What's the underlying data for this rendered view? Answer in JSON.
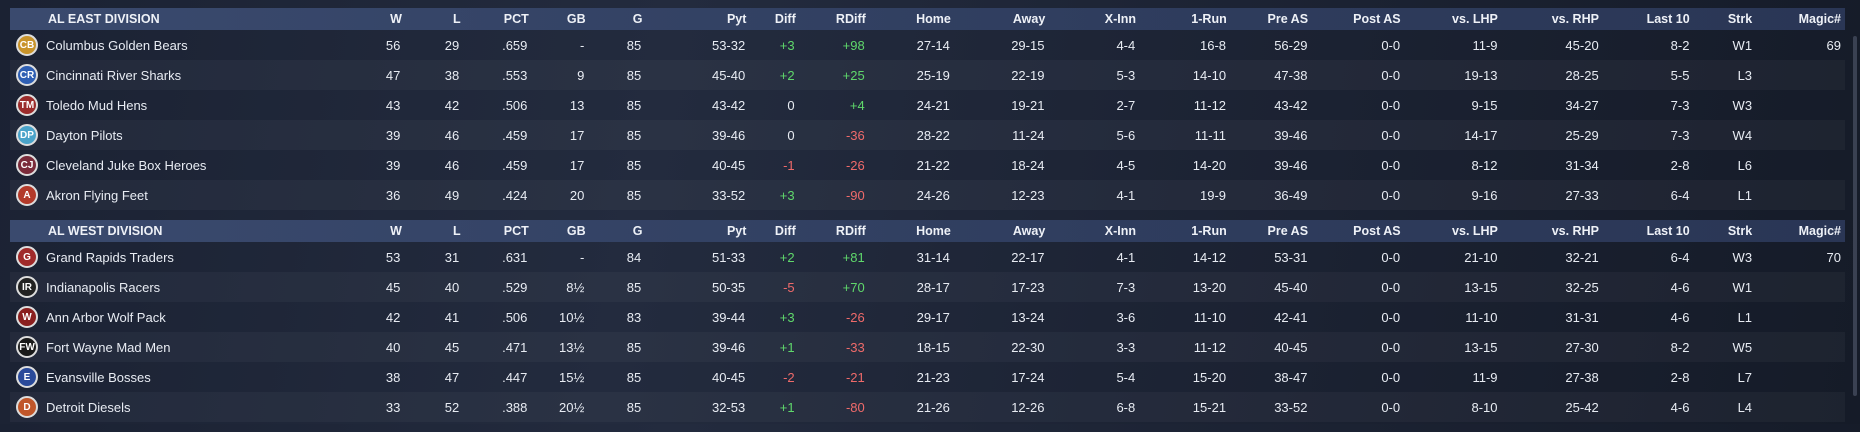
{
  "columns": {
    "w": "W",
    "l": "L",
    "pct": "PCT",
    "gb": "GB",
    "g": "G",
    "pyt": "Pyt",
    "diff": "Diff",
    "rdiff": "RDiff",
    "home": "Home",
    "away": "Away",
    "xinn": "X-Inn",
    "onerun": "1-Run",
    "preas": "Pre AS",
    "postas": "Post AS",
    "lhp": "vs. LHP",
    "rhp": "vs. RHP",
    "last10": "Last 10",
    "strk": "Strk",
    "magic": "Magic#"
  },
  "divisions": [
    {
      "name": "AL EAST DIVISION",
      "teams": [
        {
          "name": "Columbus Golden Bears",
          "logo": "CB",
          "logo_color": "#c8932a",
          "w": "56",
          "l": "29",
          "pct": ".659",
          "gb": "-",
          "g": "85",
          "pyt": "53-32",
          "diff": "+3",
          "rdiff": "+98",
          "home": "27-14",
          "away": "29-15",
          "xinn": "4-4",
          "onerun": "16-8",
          "preas": "56-29",
          "postas": "0-0",
          "lhp": "11-9",
          "rhp": "45-20",
          "last10": "8-2",
          "strk": "W1",
          "magic": "69"
        },
        {
          "name": "Cincinnati River Sharks",
          "logo": "CR",
          "logo_color": "#2f5fb3",
          "w": "47",
          "l": "38",
          "pct": ".553",
          "gb": "9",
          "g": "85",
          "pyt": "45-40",
          "diff": "+2",
          "rdiff": "+25",
          "home": "25-19",
          "away": "22-19",
          "xinn": "5-3",
          "onerun": "14-10",
          "preas": "47-38",
          "postas": "0-0",
          "lhp": "19-13",
          "rhp": "28-25",
          "last10": "5-5",
          "strk": "L3",
          "magic": ""
        },
        {
          "name": "Toledo  Mud Hens",
          "logo": "TM",
          "logo_color": "#9b2b2b",
          "w": "43",
          "l": "42",
          "pct": ".506",
          "gb": "13",
          "g": "85",
          "pyt": "43-42",
          "diff": "0",
          "rdiff": "+4",
          "home": "24-21",
          "away": "19-21",
          "xinn": "2-7",
          "onerun": "11-12",
          "preas": "43-42",
          "postas": "0-0",
          "lhp": "9-15",
          "rhp": "34-27",
          "last10": "7-3",
          "strk": "W3",
          "magic": ""
        },
        {
          "name": "Dayton Pilots",
          "logo": "DP",
          "logo_color": "#4aa3c9",
          "w": "39",
          "l": "46",
          "pct": ".459",
          "gb": "17",
          "g": "85",
          "pyt": "39-46",
          "diff": "0",
          "rdiff": "-36",
          "home": "28-22",
          "away": "11-24",
          "xinn": "5-6",
          "onerun": "11-11",
          "preas": "39-46",
          "postas": "0-0",
          "lhp": "14-17",
          "rhp": "25-29",
          "last10": "7-3",
          "strk": "W4",
          "magic": ""
        },
        {
          "name": "Cleveland Juke Box Heroes",
          "logo": "CJ",
          "logo_color": "#7a2b3a",
          "w": "39",
          "l": "46",
          "pct": ".459",
          "gb": "17",
          "g": "85",
          "pyt": "40-45",
          "diff": "-1",
          "rdiff": "-26",
          "home": "21-22",
          "away": "18-24",
          "xinn": "4-5",
          "onerun": "14-20",
          "preas": "39-46",
          "postas": "0-0",
          "lhp": "8-12",
          "rhp": "31-34",
          "last10": "2-8",
          "strk": "L6",
          "magic": ""
        },
        {
          "name": "Akron  Flying Feet",
          "logo": "A",
          "logo_color": "#b33a2a",
          "w": "36",
          "l": "49",
          "pct": ".424",
          "gb": "20",
          "g": "85",
          "pyt": "33-52",
          "diff": "+3",
          "rdiff": "-90",
          "home": "24-26",
          "away": "12-23",
          "xinn": "4-1",
          "onerun": "19-9",
          "preas": "36-49",
          "postas": "0-0",
          "lhp": "9-16",
          "rhp": "27-33",
          "last10": "6-4",
          "strk": "L1",
          "magic": ""
        }
      ]
    },
    {
      "name": "AL WEST DIVISION",
      "teams": [
        {
          "name": "Grand Rapids Traders",
          "logo": "G",
          "logo_color": "#a02a2a",
          "w": "53",
          "l": "31",
          "pct": ".631",
          "gb": "-",
          "g": "84",
          "pyt": "51-33",
          "diff": "+2",
          "rdiff": "+81",
          "home": "31-14",
          "away": "22-17",
          "xinn": "4-1",
          "onerun": "14-12",
          "preas": "53-31",
          "postas": "0-0",
          "lhp": "21-10",
          "rhp": "32-21",
          "last10": "6-4",
          "strk": "W3",
          "magic": "70"
        },
        {
          "name": "Indianapolis Racers",
          "logo": "IR",
          "logo_color": "#222222",
          "w": "45",
          "l": "40",
          "pct": ".529",
          "gb": "8½",
          "g": "85",
          "pyt": "50-35",
          "diff": "-5",
          "rdiff": "+70",
          "home": "28-17",
          "away": "17-23",
          "xinn": "7-3",
          "onerun": "13-20",
          "preas": "45-40",
          "postas": "0-0",
          "lhp": "13-15",
          "rhp": "32-25",
          "last10": "4-6",
          "strk": "W1",
          "magic": ""
        },
        {
          "name": "Ann Arbor Wolf Pack",
          "logo": "W",
          "logo_color": "#8a1f1f",
          "w": "42",
          "l": "41",
          "pct": ".506",
          "gb": "10½",
          "g": "83",
          "pyt": "39-44",
          "diff": "+3",
          "rdiff": "-26",
          "home": "29-17",
          "away": "13-24",
          "xinn": "3-6",
          "onerun": "11-10",
          "preas": "42-41",
          "postas": "0-0",
          "lhp": "11-10",
          "rhp": "31-31",
          "last10": "4-6",
          "strk": "L1",
          "magic": ""
        },
        {
          "name": "Fort Wayne Mad Men",
          "logo": "FW",
          "logo_color": "#1a1a1a",
          "w": "40",
          "l": "45",
          "pct": ".471",
          "gb": "13½",
          "g": "85",
          "pyt": "39-46",
          "diff": "+1",
          "rdiff": "-33",
          "home": "18-15",
          "away": "22-30",
          "xinn": "3-3",
          "onerun": "11-12",
          "preas": "40-45",
          "postas": "0-0",
          "lhp": "13-15",
          "rhp": "27-30",
          "last10": "8-2",
          "strk": "W5",
          "magic": ""
        },
        {
          "name": "Evansville Bosses",
          "logo": "E",
          "logo_color": "#2a4a9a",
          "w": "38",
          "l": "47",
          "pct": ".447",
          "gb": "15½",
          "g": "85",
          "pyt": "40-45",
          "diff": "-2",
          "rdiff": "-21",
          "home": "21-23",
          "away": "17-24",
          "xinn": "5-4",
          "onerun": "15-20",
          "preas": "38-47",
          "postas": "0-0",
          "lhp": "11-9",
          "rhp": "27-38",
          "last10": "2-8",
          "strk": "L7",
          "magic": ""
        },
        {
          "name": "Detroit Diesels",
          "logo": "D",
          "logo_color": "#c0562a",
          "w": "33",
          "l": "52",
          "pct": ".388",
          "gb": "20½",
          "g": "85",
          "pyt": "32-53",
          "diff": "+1",
          "rdiff": "-80",
          "home": "21-26",
          "away": "12-26",
          "xinn": "6-8",
          "onerun": "15-21",
          "preas": "33-52",
          "postas": "0-0",
          "lhp": "8-10",
          "rhp": "25-42",
          "last10": "4-6",
          "strk": "L4",
          "magic": ""
        }
      ]
    }
  ]
}
